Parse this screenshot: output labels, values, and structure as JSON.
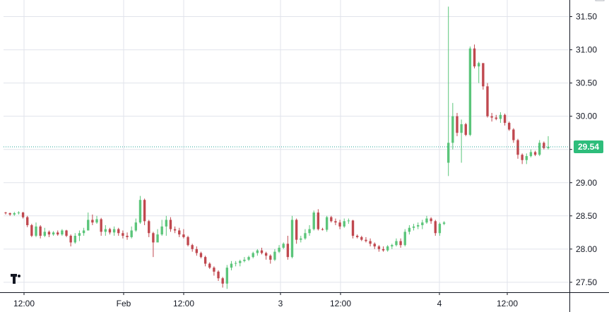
{
  "chart_data": {
    "type": "candlestick",
    "x_ticks": [
      "12:00",
      "Feb",
      "12:00",
      "3",
      "12:00",
      "4",
      "12:00"
    ],
    "y_ticks": [
      "27.50",
      "28.00",
      "28.50",
      "29.00",
      "29.50",
      "30.00",
      "30.50",
      "31.00",
      "31.50"
    ],
    "ylim": [
      27.35,
      31.75
    ],
    "last_price": "29.54",
    "last_price_value": 29.54,
    "colors": {
      "up": "#5bc57a",
      "down": "#c0484f",
      "price_line": "#26a69a",
      "price_tag": "#2ebd7b",
      "grid": "#e0e3eb"
    },
    "candles": [
      [
        28.55,
        28.56,
        28.52,
        28.54
      ],
      [
        28.54,
        28.55,
        28.5,
        28.52
      ],
      [
        28.52,
        28.56,
        28.5,
        28.54
      ],
      [
        28.54,
        28.57,
        28.52,
        28.55
      ],
      [
        28.55,
        28.56,
        28.46,
        28.48
      ],
      [
        28.48,
        28.5,
        28.33,
        28.36
      ],
      [
        28.36,
        28.38,
        28.18,
        28.2
      ],
      [
        28.2,
        28.4,
        28.18,
        28.34
      ],
      [
        28.34,
        28.36,
        28.16,
        28.2
      ],
      [
        28.2,
        28.32,
        28.18,
        28.26
      ],
      [
        28.26,
        28.28,
        28.18,
        28.22
      ],
      [
        28.22,
        28.27,
        28.2,
        28.25
      ],
      [
        28.25,
        28.28,
        28.2,
        28.22
      ],
      [
        28.22,
        28.3,
        28.2,
        28.28
      ],
      [
        28.28,
        28.29,
        28.18,
        28.2
      ],
      [
        28.2,
        28.22,
        28.04,
        28.1
      ],
      [
        28.1,
        28.24,
        28.08,
        28.2
      ],
      [
        28.2,
        28.28,
        28.12,
        28.24
      ],
      [
        28.24,
        28.32,
        28.2,
        28.28
      ],
      [
        28.28,
        28.55,
        28.28,
        28.44
      ],
      [
        28.44,
        28.52,
        28.36,
        28.4
      ],
      [
        28.4,
        28.5,
        28.38,
        28.45
      ],
      [
        28.45,
        28.47,
        28.2,
        28.26
      ],
      [
        28.26,
        28.36,
        28.2,
        28.3
      ],
      [
        28.3,
        28.32,
        28.22,
        28.25
      ],
      [
        28.25,
        28.34,
        28.2,
        28.3
      ],
      [
        28.3,
        28.32,
        28.2,
        28.24
      ],
      [
        28.24,
        28.28,
        28.16,
        28.2
      ],
      [
        28.2,
        28.25,
        28.14,
        28.18
      ],
      [
        28.18,
        28.34,
        28.16,
        28.28
      ],
      [
        28.28,
        28.46,
        28.26,
        28.4
      ],
      [
        28.4,
        28.8,
        28.38,
        28.74
      ],
      [
        28.74,
        28.76,
        28.36,
        28.42
      ],
      [
        28.42,
        28.44,
        28.18,
        28.24
      ],
      [
        28.24,
        28.26,
        27.88,
        28.1
      ],
      [
        28.1,
        28.3,
        28.1,
        28.22
      ],
      [
        28.22,
        28.44,
        28.2,
        28.34
      ],
      [
        28.34,
        28.5,
        28.2,
        28.44
      ],
      [
        28.44,
        28.48,
        28.26,
        28.3
      ],
      [
        28.3,
        28.34,
        28.24,
        28.28
      ],
      [
        28.28,
        28.32,
        28.18,
        28.22
      ],
      [
        28.22,
        28.3,
        28.16,
        28.18
      ],
      [
        28.18,
        28.2,
        28.04,
        28.06
      ],
      [
        28.06,
        28.08,
        27.96,
        28.0
      ],
      [
        28.0,
        28.04,
        27.9,
        27.94
      ],
      [
        27.94,
        27.96,
        27.86,
        27.88
      ],
      [
        27.88,
        27.9,
        27.74,
        27.78
      ],
      [
        27.78,
        27.8,
        27.7,
        27.72
      ],
      [
        27.72,
        27.74,
        27.6,
        27.66
      ],
      [
        27.66,
        27.68,
        27.52,
        27.56
      ],
      [
        27.56,
        27.58,
        27.42,
        27.48
      ],
      [
        27.48,
        27.76,
        27.4,
        27.72
      ],
      [
        27.72,
        27.82,
        27.68,
        27.78
      ],
      [
        27.78,
        27.82,
        27.74,
        27.79
      ],
      [
        27.79,
        27.84,
        27.74,
        27.82
      ],
      [
        27.82,
        27.88,
        27.8,
        27.84
      ],
      [
        27.84,
        27.9,
        27.82,
        27.88
      ],
      [
        27.88,
        27.96,
        27.86,
        27.94
      ],
      [
        27.94,
        28.0,
        27.9,
        27.98
      ],
      [
        27.98,
        28.02,
        27.92,
        27.94
      ],
      [
        27.94,
        27.96,
        27.84,
        27.9
      ],
      [
        27.9,
        27.92,
        27.78,
        27.84
      ],
      [
        27.84,
        28.0,
        27.82,
        27.96
      ],
      [
        27.96,
        28.06,
        27.94,
        28.02
      ],
      [
        28.02,
        28.1,
        28.0,
        28.08
      ],
      [
        28.08,
        28.2,
        27.84,
        27.88
      ],
      [
        27.88,
        28.5,
        27.86,
        28.44
      ],
      [
        28.44,
        28.46,
        28.08,
        28.14
      ],
      [
        28.14,
        28.2,
        28.1,
        28.16
      ],
      [
        28.16,
        28.3,
        28.14,
        28.24
      ],
      [
        28.24,
        28.36,
        28.2,
        28.3
      ],
      [
        28.3,
        28.58,
        28.28,
        28.55
      ],
      [
        28.55,
        28.6,
        28.28,
        28.3
      ],
      [
        28.3,
        28.32,
        28.28,
        28.29
      ],
      [
        28.29,
        28.5,
        28.26,
        28.48
      ],
      [
        28.48,
        28.5,
        28.4,
        28.42
      ],
      [
        28.42,
        28.46,
        28.36,
        28.4
      ],
      [
        28.4,
        28.44,
        28.3,
        28.34
      ],
      [
        28.34,
        28.46,
        28.32,
        28.42
      ],
      [
        28.42,
        28.46,
        28.38,
        28.43
      ],
      [
        28.43,
        28.44,
        28.16,
        28.2
      ],
      [
        28.2,
        28.22,
        28.16,
        28.18
      ],
      [
        28.18,
        28.2,
        28.12,
        28.14
      ],
      [
        28.14,
        28.18,
        28.1,
        28.12
      ],
      [
        28.12,
        28.16,
        28.04,
        28.08
      ],
      [
        28.08,
        28.1,
        28.0,
        28.04
      ],
      [
        28.04,
        28.06,
        27.96,
        28.0
      ],
      [
        28.0,
        28.04,
        27.96,
        27.98
      ],
      [
        27.98,
        28.06,
        27.96,
        28.04
      ],
      [
        28.04,
        28.08,
        28.0,
        28.06
      ],
      [
        28.06,
        28.16,
        28.04,
        28.12
      ],
      [
        28.12,
        28.16,
        28.02,
        28.06
      ],
      [
        28.06,
        28.3,
        28.04,
        28.26
      ],
      [
        28.26,
        28.36,
        28.22,
        28.32
      ],
      [
        28.32,
        28.38,
        28.28,
        28.34
      ],
      [
        28.34,
        28.4,
        28.3,
        28.36
      ],
      [
        28.36,
        28.44,
        28.3,
        28.4
      ],
      [
        28.4,
        28.5,
        28.38,
        28.46
      ],
      [
        28.46,
        28.48,
        28.38,
        28.42
      ],
      [
        28.42,
        28.44,
        28.2,
        28.24
      ],
      [
        28.24,
        28.4,
        28.2,
        28.38
      ],
      [
        28.38,
        28.42,
        28.36,
        28.4
      ],
      [
        29.3,
        31.65,
        29.1,
        29.6
      ],
      [
        29.6,
        30.2,
        29.5,
        30.0
      ],
      [
        30.0,
        30.05,
        29.7,
        29.75
      ],
      [
        29.75,
        29.95,
        29.3,
        29.88
      ],
      [
        29.88,
        29.9,
        29.7,
        29.72
      ],
      [
        29.72,
        31.05,
        29.7,
        31.02
      ],
      [
        31.02,
        31.08,
        30.72,
        30.75
      ],
      [
        30.75,
        30.82,
        30.5,
        30.8
      ],
      [
        30.8,
        30.8,
        30.4,
        30.45
      ],
      [
        30.45,
        30.5,
        29.98,
        30.0
      ],
      [
        30.0,
        30.05,
        29.92,
        29.98
      ],
      [
        29.98,
        30.02,
        29.94,
        29.96
      ],
      [
        29.96,
        30.06,
        29.9,
        30.02
      ],
      [
        30.02,
        30.04,
        29.86,
        29.9
      ],
      [
        29.9,
        29.92,
        29.78,
        29.8
      ],
      [
        29.8,
        29.82,
        29.6,
        29.64
      ],
      [
        29.64,
        29.66,
        29.36,
        29.42
      ],
      [
        29.42,
        29.44,
        29.28,
        29.34
      ],
      [
        29.34,
        29.44,
        29.28,
        29.4
      ],
      [
        29.4,
        29.5,
        29.38,
        29.46
      ],
      [
        29.46,
        29.48,
        29.4,
        29.42
      ],
      [
        29.42,
        29.64,
        29.4,
        29.6
      ],
      [
        29.6,
        29.62,
        29.5,
        29.52
      ],
      [
        29.52,
        29.7,
        29.5,
        29.54
      ]
    ]
  }
}
